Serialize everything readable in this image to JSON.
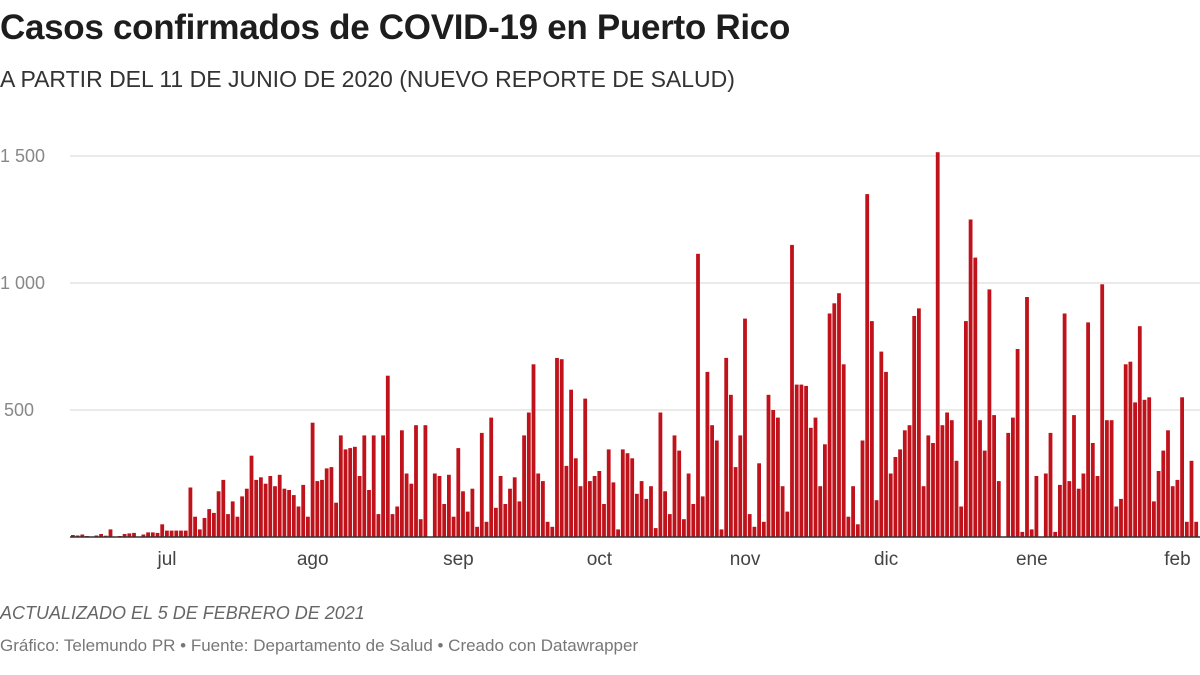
{
  "header": {
    "title": "Casos confirmados de COVID-19 en Puerto Rico",
    "subtitle": "A PARTIR DEL 11 DE JUNIO DE 2020 (NUEVO REPORTE DE SALUD)"
  },
  "footer": {
    "updated": "ACTUALIZADO EL 5 DE FEBRERO DE 2021",
    "credits": "Gráfico: Telemundo PR • Fuente: Departamento de Salud • Creado con Datawrapper"
  },
  "chart_data": {
    "type": "bar",
    "title": "Casos confirmados de COVID-19 en Puerto Rico",
    "xlabel": "",
    "ylabel": "",
    "ylim": [
      0,
      1500
    ],
    "y_ticks": [
      {
        "value": 500,
        "label": "500"
      },
      {
        "value": 1000,
        "label": "1 000"
      },
      {
        "value": 1500,
        "label": "1 500"
      }
    ],
    "x_ticks": [
      {
        "date": "2020-07-01",
        "label": "jul"
      },
      {
        "date": "2020-08-01",
        "label": "ago"
      },
      {
        "date": "2020-09-01",
        "label": "sep"
      },
      {
        "date": "2020-10-01",
        "label": "oct"
      },
      {
        "date": "2020-11-01",
        "label": "nov"
      },
      {
        "date": "2020-12-01",
        "label": "dic"
      },
      {
        "date": "2021-01-01",
        "label": "ene"
      },
      {
        "date": "2021-02-01",
        "label": "feb"
      }
    ],
    "grid": true,
    "color": "#c0121a",
    "daily_by_month": [
      {
        "month": "2020-06",
        "start_day": 11,
        "values": [
          8,
          6,
          10,
          4,
          2,
          6,
          12,
          5,
          30,
          2,
          4,
          12,
          14,
          16,
          2,
          10,
          18,
          18,
          16,
          50
        ]
      },
      {
        "month": "2020-07",
        "start_day": 1,
        "values": [
          25,
          25,
          25,
          25,
          25,
          195,
          80,
          30,
          75,
          110,
          95,
          180,
          225,
          90,
          140,
          80,
          160,
          190,
          320,
          225,
          235,
          210,
          240,
          200,
          245,
          190,
          185,
          165,
          120,
          205,
          80
        ]
      },
      {
        "month": "2020-08",
        "start_day": 1,
        "values": [
          450,
          220,
          225,
          270,
          275,
          135,
          400,
          345,
          350,
          355,
          240,
          400,
          185,
          400,
          90,
          400,
          635,
          90,
          120,
          420,
          250,
          210,
          440,
          70,
          440,
          0,
          250,
          240,
          130,
          245,
          80
        ]
      },
      {
        "month": "2020-09",
        "start_day": 1,
        "values": [
          350,
          180,
          100,
          190,
          40,
          410,
          60,
          470,
          115,
          240,
          130,
          190,
          235,
          140,
          400,
          490,
          680,
          250,
          220,
          60,
          40,
          705,
          700,
          280,
          580,
          310,
          200,
          545,
          220,
          240
        ]
      },
      {
        "month": "2020-10",
        "start_day": 1,
        "values": [
          260,
          130,
          345,
          215,
          30,
          345,
          330,
          310,
          170,
          220,
          150,
          200,
          35,
          490,
          180,
          90,
          400,
          340,
          70,
          250,
          130,
          1115,
          160,
          650,
          440,
          380,
          30,
          705,
          560,
          275,
          400
        ]
      },
      {
        "month": "2020-11",
        "start_day": 1,
        "values": [
          860,
          90,
          40,
          290,
          60,
          560,
          500,
          470,
          200,
          100,
          1150,
          600,
          600,
          595,
          430,
          470,
          200,
          365,
          880,
          920,
          960,
          680,
          80,
          200,
          50,
          380,
          1350,
          850,
          145,
          730
        ]
      },
      {
        "month": "2020-12",
        "start_day": 1,
        "values": [
          650,
          250,
          315,
          345,
          420,
          440,
          870,
          900,
          200,
          400,
          370,
          1515,
          440,
          490,
          460,
          300,
          120,
          850,
          1250,
          1100,
          460,
          340,
          975,
          480,
          220,
          0,
          410,
          470,
          740,
          20,
          945
        ]
      },
      {
        "month": "2021-01",
        "start_day": 1,
        "values": [
          30,
          240,
          0,
          250,
          410,
          20,
          205,
          880,
          220,
          480,
          190,
          250,
          845,
          370,
          240,
          995,
          460,
          460,
          120,
          150,
          680,
          690,
          530,
          830,
          540,
          550,
          140,
          260,
          340,
          420,
          200
        ]
      },
      {
        "month": "2021-02",
        "start_day": 1,
        "values": [
          225,
          550,
          60,
          300,
          60
        ]
      }
    ]
  }
}
